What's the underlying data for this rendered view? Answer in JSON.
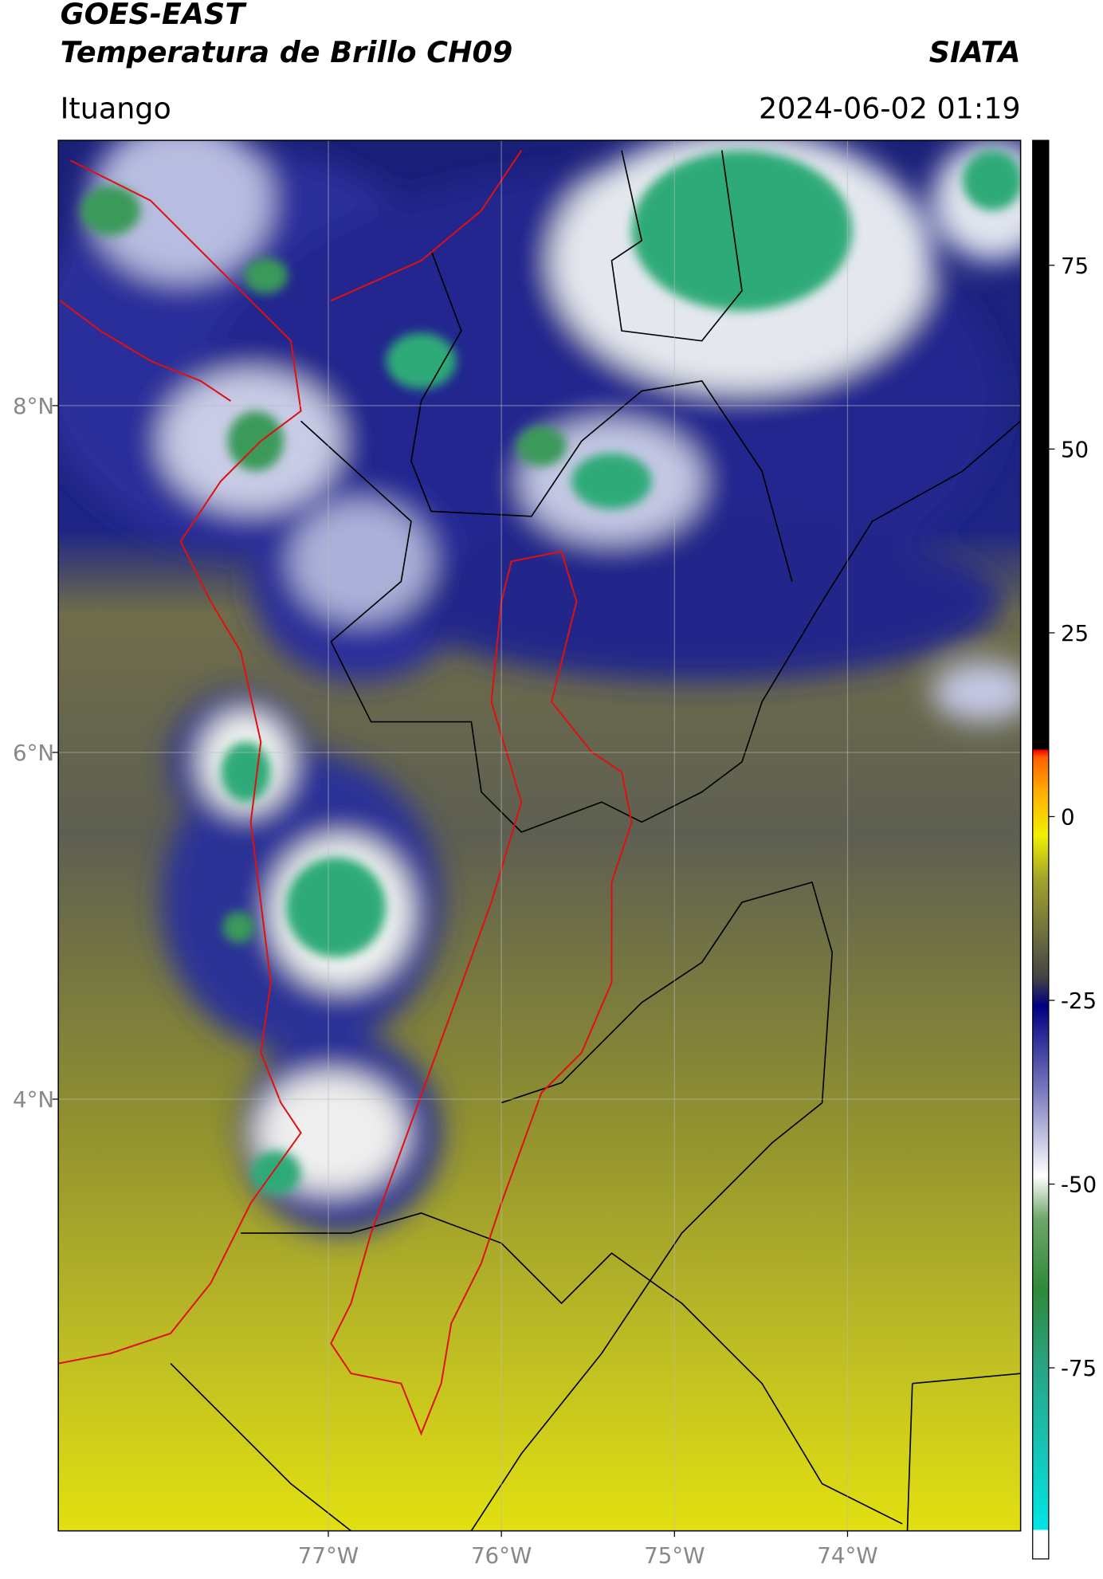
{
  "header": {
    "title_line1": "GOES-EAST",
    "title_line2": "Temperatura de Brillo CH09",
    "credit": "SIATA",
    "location": "Ituango",
    "timestamp": "2024-06-02 01:19"
  },
  "map": {
    "xlim": [
      -78.56,
      -73.0
    ],
    "ylim": [
      1.51,
      9.53
    ],
    "xticks": [
      {
        "value": -77,
        "label": "77°W"
      },
      {
        "value": -76,
        "label": "76°W"
      },
      {
        "value": -75,
        "label": "75°W"
      },
      {
        "value": -74,
        "label": "74°W"
      }
    ],
    "yticks": [
      {
        "value": 8,
        "label": "8°N"
      },
      {
        "value": 6,
        "label": "6°N"
      },
      {
        "value": 4,
        "label": "4°N"
      }
    ],
    "grid": true
  },
  "colorbar": {
    "lim": [
      -101,
      92
    ],
    "ticks": [
      75,
      50,
      25,
      0,
      -25,
      -50,
      -75
    ]
  }
}
